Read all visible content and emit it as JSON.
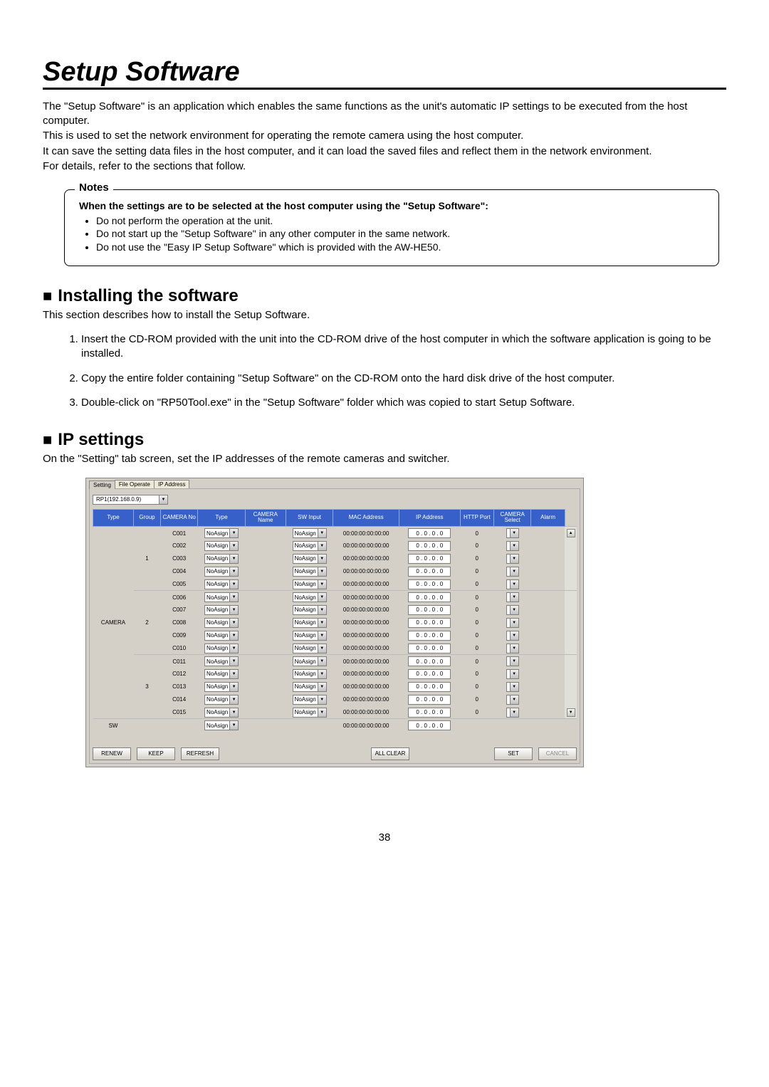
{
  "page": {
    "title": "Setup Software",
    "intro": {
      "p1": "The \"Setup Software\" is an application which enables the same functions as the unit's automatic IP settings to be executed from the host computer.",
      "p2": "This is used to set the network environment for operating the remote camera using the host computer.",
      "p3": "It can save the setting data files in the host computer, and it can load the saved files and reflect them in the network environment.",
      "p4": "For details, refer to the sections that follow."
    },
    "notes": {
      "title": "Notes",
      "lead": "When the settings are to be selected at the host computer using the \"Setup Software\":",
      "items": [
        "Do not perform the operation at the unit.",
        "Do not start up the \"Setup Software\" in any other computer in the same network.",
        "Do not use the \"Easy IP Setup Software\" which is provided with the AW-HE50."
      ]
    },
    "section1": {
      "heading": "Installing the software",
      "desc": "This section describes how to install the Setup Software.",
      "steps": [
        "Insert the CD-ROM provided with the unit into the CD-ROM drive of the host computer in which the software application is going to be installed.",
        "Copy the entire folder containing \"Setup Software\" on the CD-ROM onto the hard disk drive of the host computer.",
        "Double-click on \"RP50Tool.exe\" in the \"Setup Software\" folder which was copied to start Setup Software."
      ]
    },
    "section2": {
      "heading": "IP settings",
      "desc": "On the \"Setting\" tab screen, set the IP addresses of the remote cameras and switcher."
    },
    "pagenum": "38"
  },
  "screenshot": {
    "tabs": [
      "Setting",
      "File Operate",
      "IP Address"
    ],
    "active_tab": 0,
    "rp_selector": "RP1(192.168.0.9)",
    "columns": [
      "Type",
      "Group",
      "CAMERA No",
      "Type",
      "CAMERA\nName",
      "SW Input",
      "MAC Address",
      "IP Address",
      "HTTP Port",
      "CAMERA\nSelect",
      "Alarm"
    ],
    "groups": [
      {
        "group": "1",
        "rows": [
          "C001",
          "C002",
          "C003",
          "C004",
          "C005"
        ]
      },
      {
        "group": "2",
        "rows": [
          "C006",
          "C007",
          "C008",
          "C009",
          "C010"
        ]
      },
      {
        "group": "3",
        "rows": [
          "C011",
          "C012",
          "C013",
          "C014",
          "C015"
        ]
      }
    ],
    "type_label": "CAMERA",
    "row_values": {
      "type_sel": "NoAsign",
      "swin_sel": "NoAsign",
      "mac": "00:00:00:00:00:00",
      "ip": "0  .  0  .  0  .  0",
      "http": "0"
    },
    "sw_row": {
      "label": "SW",
      "type_sel": "NoAsign",
      "mac": "00:00:00:00:00:00",
      "ip": "0  .  0  .  0  .  0"
    },
    "buttons": {
      "renew": "RENEW",
      "keep": "KEEP",
      "refresh": "REFRESH",
      "allclear": "ALL CLEAR",
      "set": "SET",
      "cancel": "CANCEL"
    },
    "colors": {
      "header_bg": "#3761c8",
      "win_bg": "#d4d0c8"
    }
  }
}
